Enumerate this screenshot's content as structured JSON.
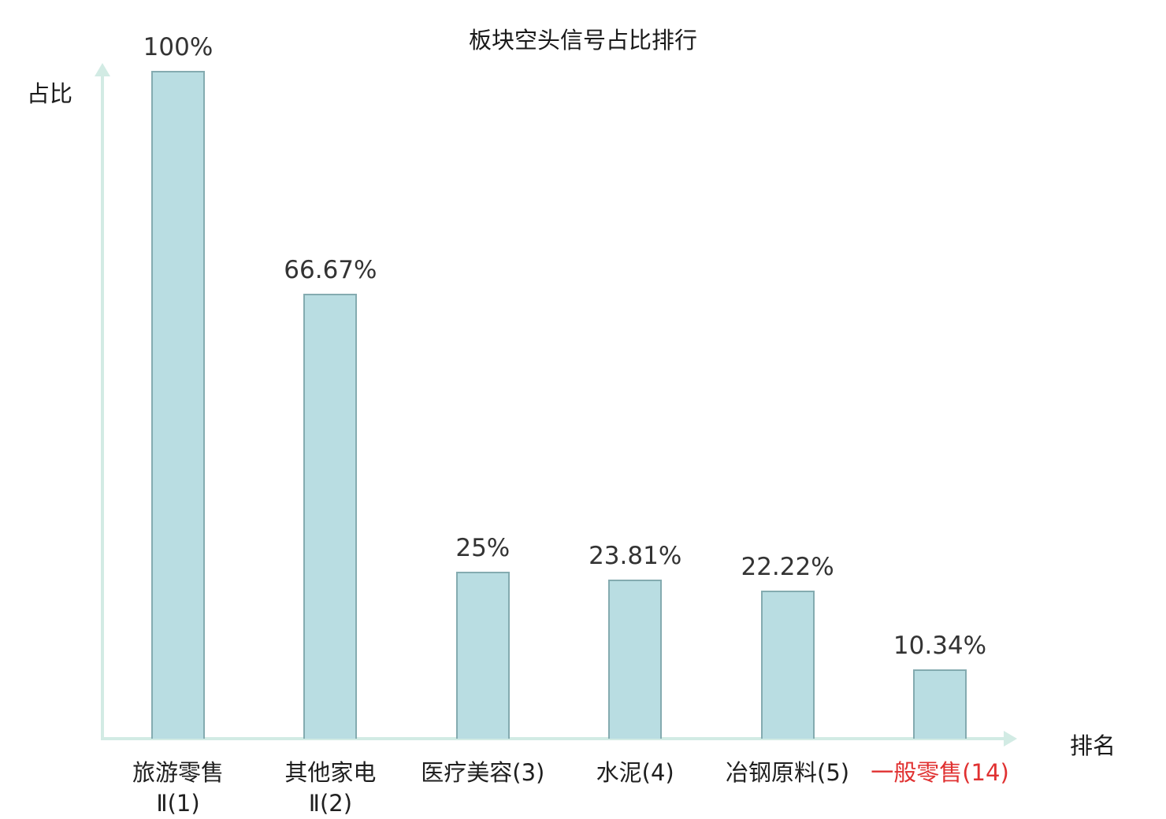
{
  "colors": {
    "bar_fill": "#b9dde2",
    "bar_border": "#84abb0",
    "axis": "#d2ebe4",
    "highlight": "#e03131",
    "text": "#1f1f1f"
  },
  "chart_data": {
    "type": "bar",
    "title": "板块空头信号占比排行",
    "xlabel": "排名",
    "ylabel": "占比",
    "ylim": [
      0,
      100
    ],
    "grid": false,
    "legend": "none",
    "categories": [
      "旅游零售Ⅱ(1)",
      "其他家电Ⅱ(2)",
      "医疗美容(3)",
      "水泥(4)",
      "冶钢原料(5)",
      "一般零售(14)"
    ],
    "values": [
      100,
      66.67,
      25,
      23.81,
      22.22,
      10.34
    ],
    "bars": [
      {
        "category": "旅游零售\nⅡ(1)",
        "value": 100,
        "value_label": "100%",
        "highlighted": false
      },
      {
        "category": "其他家电\nⅡ(2)",
        "value": 66.67,
        "value_label": "66.67%",
        "highlighted": false
      },
      {
        "category": "医疗美容(3)",
        "value": 25,
        "value_label": "25%",
        "highlighted": false
      },
      {
        "category": "水泥(4)",
        "value": 23.81,
        "value_label": "23.81%",
        "highlighted": false
      },
      {
        "category": "冶钢原料(5)",
        "value": 22.22,
        "value_label": "22.22%",
        "highlighted": false
      },
      {
        "category": "一般零售(14)",
        "value": 10.34,
        "value_label": "10.34%",
        "highlighted": true
      }
    ]
  }
}
